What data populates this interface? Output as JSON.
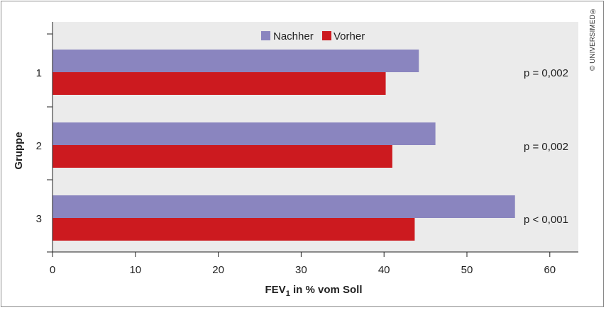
{
  "chart_data": {
    "type": "bar",
    "orientation": "horizontal",
    "categories": [
      "1",
      "2",
      "3"
    ],
    "series": [
      {
        "name": "Nachher",
        "color": "#8a85bf",
        "values": [
          44.2,
          46.2,
          55.8
        ]
      },
      {
        "name": "Vorher",
        "color": "#cc1a1f",
        "values": [
          40.2,
          41.0,
          43.7
        ]
      }
    ],
    "xlabel": "FEV",
    "xlabel_subscript": "1",
    "xlabel_suffix": " in % vom Soll",
    "ylabel": "Gruppe",
    "xlim": [
      0,
      63
    ],
    "xticks": [
      0,
      10,
      20,
      30,
      40,
      50,
      60
    ],
    "annotations": [
      "p = 0,002",
      "p = 0,002",
      "p < 0,001"
    ],
    "legend_position": "top-center",
    "plot_background": "#ebebeb",
    "grid": false
  },
  "watermark": "© UNIVERSIMED",
  "watermark_mark": "®"
}
